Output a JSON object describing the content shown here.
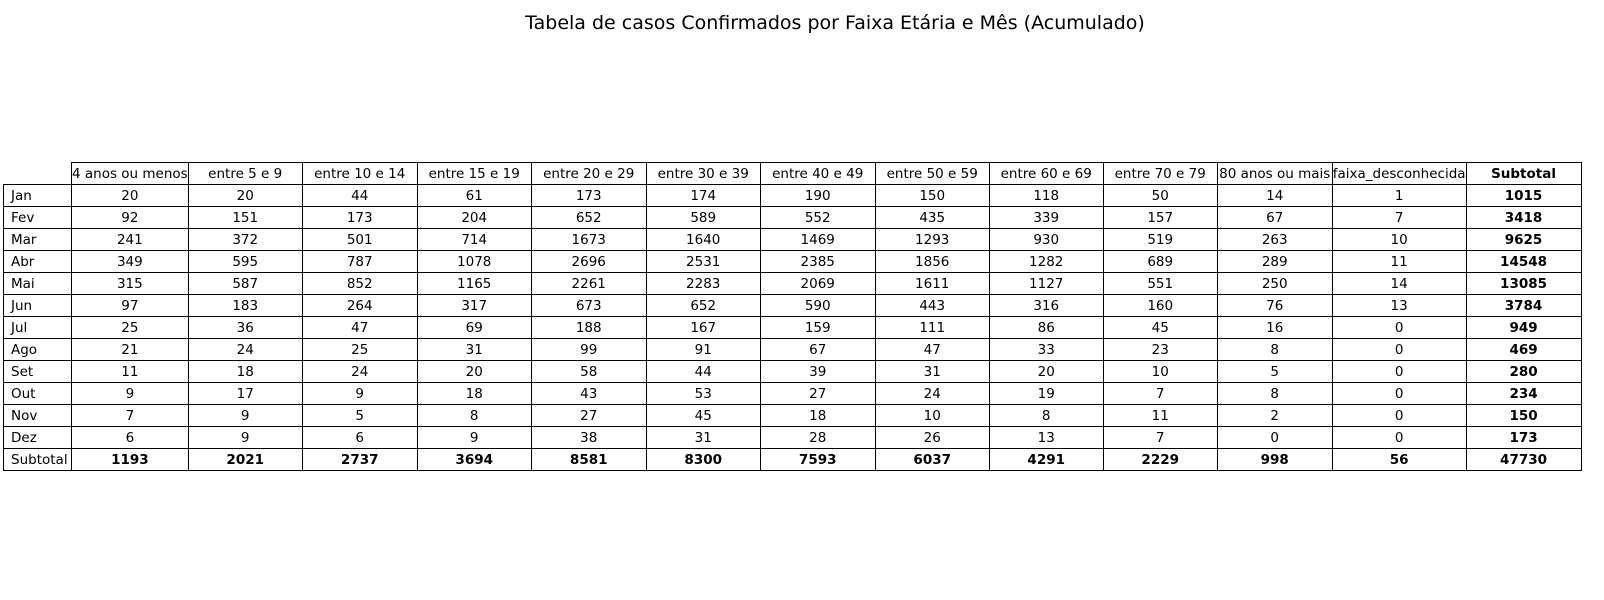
{
  "chart_data": {
    "type": "table",
    "title": "Tabela de casos Confirmados por Faixa Etária e Mês (Acumulado)",
    "columns": [
      "4 anos ou menos",
      "entre 5 e 9",
      "entre 10 e 14",
      "entre 15 e 19",
      "entre 20 e 29",
      "entre 30 e 39",
      "entre 40 e 49",
      "entre 50 e 59",
      "entre 60 e 69",
      "entre 70 e 79",
      "80 anos ou mais",
      "faixa_desconhecida",
      "Subtotal"
    ],
    "rows": [
      {
        "label": "Jan",
        "values": [
          "20",
          "20",
          "44",
          "61",
          "173",
          "174",
          "190",
          "150",
          "118",
          "50",
          "14",
          "1",
          "1015"
        ]
      },
      {
        "label": "Fev",
        "values": [
          "92",
          "151",
          "173",
          "204",
          "652",
          "589",
          "552",
          "435",
          "339",
          "157",
          "67",
          "7",
          "3418"
        ]
      },
      {
        "label": "Mar",
        "values": [
          "241",
          "372",
          "501",
          "714",
          "1673",
          "1640",
          "1469",
          "1293",
          "930",
          "519",
          "263",
          "10",
          "9625"
        ]
      },
      {
        "label": "Abr",
        "values": [
          "349",
          "595",
          "787",
          "1078",
          "2696",
          "2531",
          "2385",
          "1856",
          "1282",
          "689",
          "289",
          "11",
          "14548"
        ]
      },
      {
        "label": "Mai",
        "values": [
          "315",
          "587",
          "852",
          "1165",
          "2261",
          "2283",
          "2069",
          "1611",
          "1127",
          "551",
          "250",
          "14",
          "13085"
        ]
      },
      {
        "label": "Jun",
        "values": [
          "97",
          "183",
          "264",
          "317",
          "673",
          "652",
          "590",
          "443",
          "316",
          "160",
          "76",
          "13",
          "3784"
        ]
      },
      {
        "label": "Jul",
        "values": [
          "25",
          "36",
          "47",
          "69",
          "188",
          "167",
          "159",
          "111",
          "86",
          "45",
          "16",
          "0",
          "949"
        ]
      },
      {
        "label": "Ago",
        "values": [
          "21",
          "24",
          "25",
          "31",
          "99",
          "91",
          "67",
          "47",
          "33",
          "23",
          "8",
          "0",
          "469"
        ]
      },
      {
        "label": "Set",
        "values": [
          "11",
          "18",
          "24",
          "20",
          "58",
          "44",
          "39",
          "31",
          "20",
          "10",
          "5",
          "0",
          "280"
        ]
      },
      {
        "label": "Out",
        "values": [
          "9",
          "17",
          "9",
          "18",
          "43",
          "53",
          "27",
          "24",
          "19",
          "7",
          "8",
          "0",
          "234"
        ]
      },
      {
        "label": "Nov",
        "values": [
          "7",
          "9",
          "5",
          "8",
          "27",
          "45",
          "18",
          "10",
          "8",
          "11",
          "2",
          "0",
          "150"
        ]
      },
      {
        "label": "Dez",
        "values": [
          "6",
          "9",
          "6",
          "9",
          "38",
          "31",
          "28",
          "26",
          "13",
          "7",
          "0",
          "0",
          "173"
        ]
      },
      {
        "label": "Subtotal",
        "values": [
          "1193",
          "2021",
          "2737",
          "3694",
          "8581",
          "8300",
          "7593",
          "6037",
          "4291",
          "2229",
          "998",
          "56",
          "47730"
        ]
      }
    ]
  }
}
